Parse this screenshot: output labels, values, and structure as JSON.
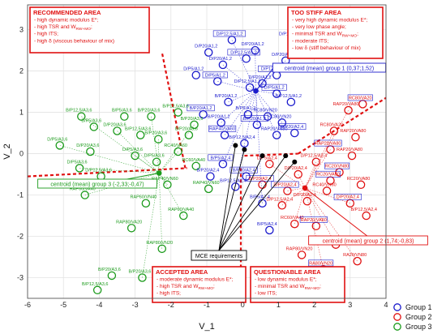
{
  "chart_data": {
    "type": "scatter",
    "xlabel": "V_1",
    "ylabel": "V_2",
    "xlim": [
      -6,
      4
    ],
    "ylim": [
      -3.5,
      3.6
    ],
    "xticks": [
      -6,
      -5,
      -4,
      -3,
      -2,
      -1,
      0,
      1,
      2,
      3,
      4
    ],
    "yticks": [
      -3,
      -2,
      -1,
      0,
      1,
      2,
      3
    ],
    "grid": true,
    "legend_position": "bottom-right",
    "colors": {
      "g1": "#1a1acc",
      "g2": "#e01010",
      "g3": "#1a9a1a",
      "zone": "#e01010",
      "req": "#000000"
    },
    "series": [
      {
        "name": "Group 1",
        "points": [
          {
            "x": -0.3,
            "y": 2.75,
            "label": "D/P12,5/A1,2"
          },
          {
            "x": -0.95,
            "y": 2.45,
            "label": "D/P20/A1,2"
          },
          {
            "x": -0.55,
            "y": 2.15,
            "label": "D/P20/A1,2"
          },
          {
            "x": 0.1,
            "y": 2.3,
            "label": "D/P12,5/A1,2"
          },
          {
            "x": 0.35,
            "y": 2.5,
            "label": "D/P20/A1,2"
          },
          {
            "x": -1.3,
            "y": 1.9,
            "label": "D/P5/A1,2"
          },
          {
            "x": -0.7,
            "y": 1.75,
            "label": "D/P5/A1,2"
          },
          {
            "x": 0.2,
            "y": 1.6,
            "label": "D/P12,5/A1,2"
          },
          {
            "x": 0.55,
            "y": 1.7,
            "label": "D/P20/A1,2"
          },
          {
            "x": 0.95,
            "y": 1.9,
            "label": "D/P12,5/A1,2"
          },
          {
            "x": 1.2,
            "y": 2.25,
            "label": "D/P20/A1,2"
          },
          {
            "x": 1.45,
            "y": 2.75,
            "label": "D/P12,5/A1,2"
          },
          {
            "x": 0.95,
            "y": 1.45,
            "label": "D/P5/A1,2"
          },
          {
            "x": 1.35,
            "y": 1.25,
            "label": "B/P12,5/A1,2"
          },
          {
            "x": -0.4,
            "y": 1.25,
            "label": "B/P20/A1,2"
          },
          {
            "x": -1.1,
            "y": 0.95,
            "label": "B/P20/A1,2"
          },
          {
            "x": -0.6,
            "y": 0.75,
            "label": "B/P20/A1,2"
          },
          {
            "x": 0.15,
            "y": 0.95,
            "label": "B/P5/A1,2"
          },
          {
            "x": 0.4,
            "y": 0.7,
            "label": "B/P20/A1,2"
          },
          {
            "x": 0.7,
            "y": 0.9,
            "label": "RC80/VN20"
          },
          {
            "x": 1.1,
            "y": 0.75,
            "label": "RC80/VN20"
          },
          {
            "x": 1.45,
            "y": 0.5,
            "label": "B/P20/A2,4"
          },
          {
            "x": 0.95,
            "y": 0.45,
            "label": "RAP20/VN80"
          },
          {
            "x": 0.05,
            "y": 0.25,
            "label": "B/P12,5/A2,4"
          },
          {
            "x": -0.55,
            "y": -0.25,
            "label": "B/P5/A2,4"
          },
          {
            "x": -0.9,
            "y": -0.55,
            "label": "B/P20/A2,4"
          },
          {
            "x": -0.2,
            "y": -0.8,
            "label": "B/P12,5/A2,4"
          },
          {
            "x": 0.1,
            "y": -0.55,
            "label": "B/P20/A2,4"
          },
          {
            "x": 0.55,
            "y": -1.2,
            "label": "B/P5/A2,4"
          },
          {
            "x": 0.75,
            "y": -1.85,
            "label": "B/P5/A2,4"
          },
          {
            "x": -0.5,
            "y": 0.45,
            "label": "RAP40/VA60"
          }
        ]
      },
      {
        "name": "Group 2",
        "points": [
          {
            "x": 2.95,
            "y": 1.05,
            "label": "RAP20/VA80"
          },
          {
            "x": 3.35,
            "y": 1.2,
            "label": "RC80/VA20"
          },
          {
            "x": 2.55,
            "y": 0.55,
            "label": "RC80/VA20"
          },
          {
            "x": 3.15,
            "y": 0.4,
            "label": "RAP20/VA80"
          },
          {
            "x": 2.45,
            "y": 0.1,
            "label": "RAP20/VA80"
          },
          {
            "x": 3.05,
            "y": -0.05,
            "label": "RAP20/VA80"
          },
          {
            "x": 2.05,
            "y": -0.2,
            "label": "D/P12,5/A2,4"
          },
          {
            "x": 2.7,
            "y": -0.45,
            "label": "RC20/VN80"
          },
          {
            "x": 1.55,
            "y": -0.5,
            "label": "D/P20/A2,4"
          },
          {
            "x": 3.3,
            "y": -0.75,
            "label": "RC20/VA80"
          },
          {
            "x": 1.25,
            "y": -0.9,
            "label": "D/P20/A2,4"
          },
          {
            "x": 2.35,
            "y": -0.9,
            "label": "RC40/VN60"
          },
          {
            "x": 0.75,
            "y": -0.25,
            "label": "D/P5/A2,4"
          },
          {
            "x": 0.55,
            "y": -0.75,
            "label": "D/P20/A2,4"
          },
          {
            "x": 1.1,
            "y": -1.25,
            "label": "D/P12,5/A2,4"
          },
          {
            "x": 1.8,
            "y": -1.15,
            "label": "D/P20/A2,4"
          },
          {
            "x": 3.0,
            "y": -1.2,
            "label": "D/P20/A2,4"
          },
          {
            "x": 3.45,
            "y": -1.5,
            "label": "B/P12,5/A2,4"
          },
          {
            "x": 1.45,
            "y": -1.7,
            "label": "RC60/VA40"
          },
          {
            "x": 2.05,
            "y": -1.75,
            "label": "RAP20/VA80"
          },
          {
            "x": 2.6,
            "y": -2.2,
            "label": "RAP80/VA20"
          },
          {
            "x": 1.65,
            "y": -2.45,
            "label": "RAP80/VN20"
          },
          {
            "x": 2.25,
            "y": -2.8,
            "label": "RA80/VN20"
          },
          {
            "x": 1.45,
            "y": -3.1,
            "label": "RA20/VN80"
          },
          {
            "x": 3.2,
            "y": -2.6,
            "label": "RA20/VN80"
          },
          {
            "x": 2.45,
            "y": -0.65,
            "label": "RC20/VA80"
          }
        ]
      },
      {
        "name": "Group 3",
        "points": [
          {
            "x": -4.5,
            "y": 0.9,
            "label": "B/P12,5/A3,6"
          },
          {
            "x": -3.3,
            "y": 0.9,
            "label": "B/P5/A3,6"
          },
          {
            "x": -2.55,
            "y": 0.9,
            "label": "B/P20/A3,6"
          },
          {
            "x": -1.8,
            "y": 1.0,
            "label": "B/P12,5/A3,6"
          },
          {
            "x": -1.35,
            "y": 0.7,
            "label": "B/P20/A3,6"
          },
          {
            "x": -4.15,
            "y": 0.65,
            "label": "B/P5/A3,6"
          },
          {
            "x": -3.5,
            "y": 0.55,
            "label": "D/P20/A3,6"
          },
          {
            "x": -2.85,
            "y": 0.45,
            "label": "B/P12,5/A3,6"
          },
          {
            "x": -2.35,
            "y": 0.35,
            "label": "B/P20/A3,6"
          },
          {
            "x": -1.5,
            "y": 0.45,
            "label": "B/P20/A3,6"
          },
          {
            "x": -5.1,
            "y": 0.2,
            "label": "D/P5/A3,6"
          },
          {
            "x": -4.25,
            "y": 0.05,
            "label": "D/P20/A3,6"
          },
          {
            "x": -3.0,
            "y": -0.05,
            "label": "D/P5/A3,6"
          },
          {
            "x": -2.4,
            "y": -0.2,
            "label": "D/P5/A3,6"
          },
          {
            "x": -1.8,
            "y": 0.05,
            "label": "RC40/VA60"
          },
          {
            "x": -1.3,
            "y": -0.3,
            "label": "RC60/VA40"
          },
          {
            "x": -4.55,
            "y": -0.35,
            "label": "D/P5/A3,6"
          },
          {
            "x": -3.95,
            "y": -0.55,
            "label": "D/P12,5/A3,6"
          },
          {
            "x": -2.1,
            "y": -0.75,
            "label": "RAP40/VN60"
          },
          {
            "x": -0.95,
            "y": -0.85,
            "label": "RAP40/VN60"
          },
          {
            "x": -4.4,
            "y": -1.0,
            "label": "RAP60/VA40"
          },
          {
            "x": -2.7,
            "y": -1.2,
            "label": "RAP60/VN40"
          },
          {
            "x": -1.65,
            "y": -1.5,
            "label": "RAP60/VA40"
          },
          {
            "x": -3.1,
            "y": -1.8,
            "label": "RAP80/VA20"
          },
          {
            "x": -2.25,
            "y": -2.3,
            "label": "RAP80/VN20"
          },
          {
            "x": -3.65,
            "y": -2.95,
            "label": "B/P20/A3,6"
          },
          {
            "x": -2.8,
            "y": -3.0,
            "label": "B/P20/A3,6"
          },
          {
            "x": -4.05,
            "y": -3.3,
            "label": "B/P12,5/A3,6"
          }
        ]
      }
    ],
    "boxed_labels_g1": [
      "D/P12,5/A1,2",
      "D/P12,5/A1,2",
      "B/P12,5/A1,2",
      "B/P20/A1,2",
      "RAP40/VA60",
      "B/P20/A1,2",
      "RC80/VN20",
      "RAP20/VN80",
      "RC80/VA20",
      "B/P12,5/A2,4",
      "B/P5/A2,4",
      "B/P20/A2,4"
    ],
    "centroids": [
      {
        "name": "Group 1",
        "x": 0.37,
        "y": 1.52,
        "text": "centroid (mean) group 1 (0,37;1,52)"
      },
      {
        "name": "Group 2",
        "x": 1.74,
        "y": -0.83,
        "text": "centroid  (mean) group 2 (1,74;-0,83)"
      },
      {
        "name": "Group 3",
        "x": -2.33,
        "y": -0.47,
        "text": "centroid (mean) group 3 (-2,33;-0,47)"
      }
    ],
    "mce_points": [
      {
        "x": -0.2,
        "y": 0.2
      },
      {
        "x": 0.05,
        "y": 0.1
      },
      {
        "x": 0.55,
        "y": -0.05
      },
      {
        "x": 1.2,
        "y": -0.05
      },
      {
        "x": 1.45,
        "y": -0.2
      }
    ],
    "mce_label": "MCE requirements",
    "zones": [
      {
        "id": "recommended",
        "title": "RECOMMENDED AREA",
        "lines": [
          "- high dynamic modulus E*;",
          "- high TSR and W_RW+MO;",
          "- high ITS;",
          "- high δ (viscous behaviour of mix)"
        ]
      },
      {
        "id": "too_stiff",
        "title": "TOO STIFF AREA",
        "lines": [
          "- very high dynamic modulus E*;",
          "- very low phase angle;",
          "- minimal TSR and W_RW+MO;",
          "- moderate ITS;",
          "- low δ (stiff behaviour of mix)"
        ]
      },
      {
        "id": "accepted",
        "title": "ACCEPTED AREA",
        "lines": [
          "- moderate dynamic modulus E*;",
          "- high TSR and W_RW+MO;",
          "- high ITS;"
        ]
      },
      {
        "id": "questionable",
        "title": "QUESTIONABLE AREA",
        "lines": [
          "- low dynamic modulus E*;",
          "- minimal TSR and W_RW+MO;",
          "- low ITS;"
        ]
      }
    ]
  }
}
